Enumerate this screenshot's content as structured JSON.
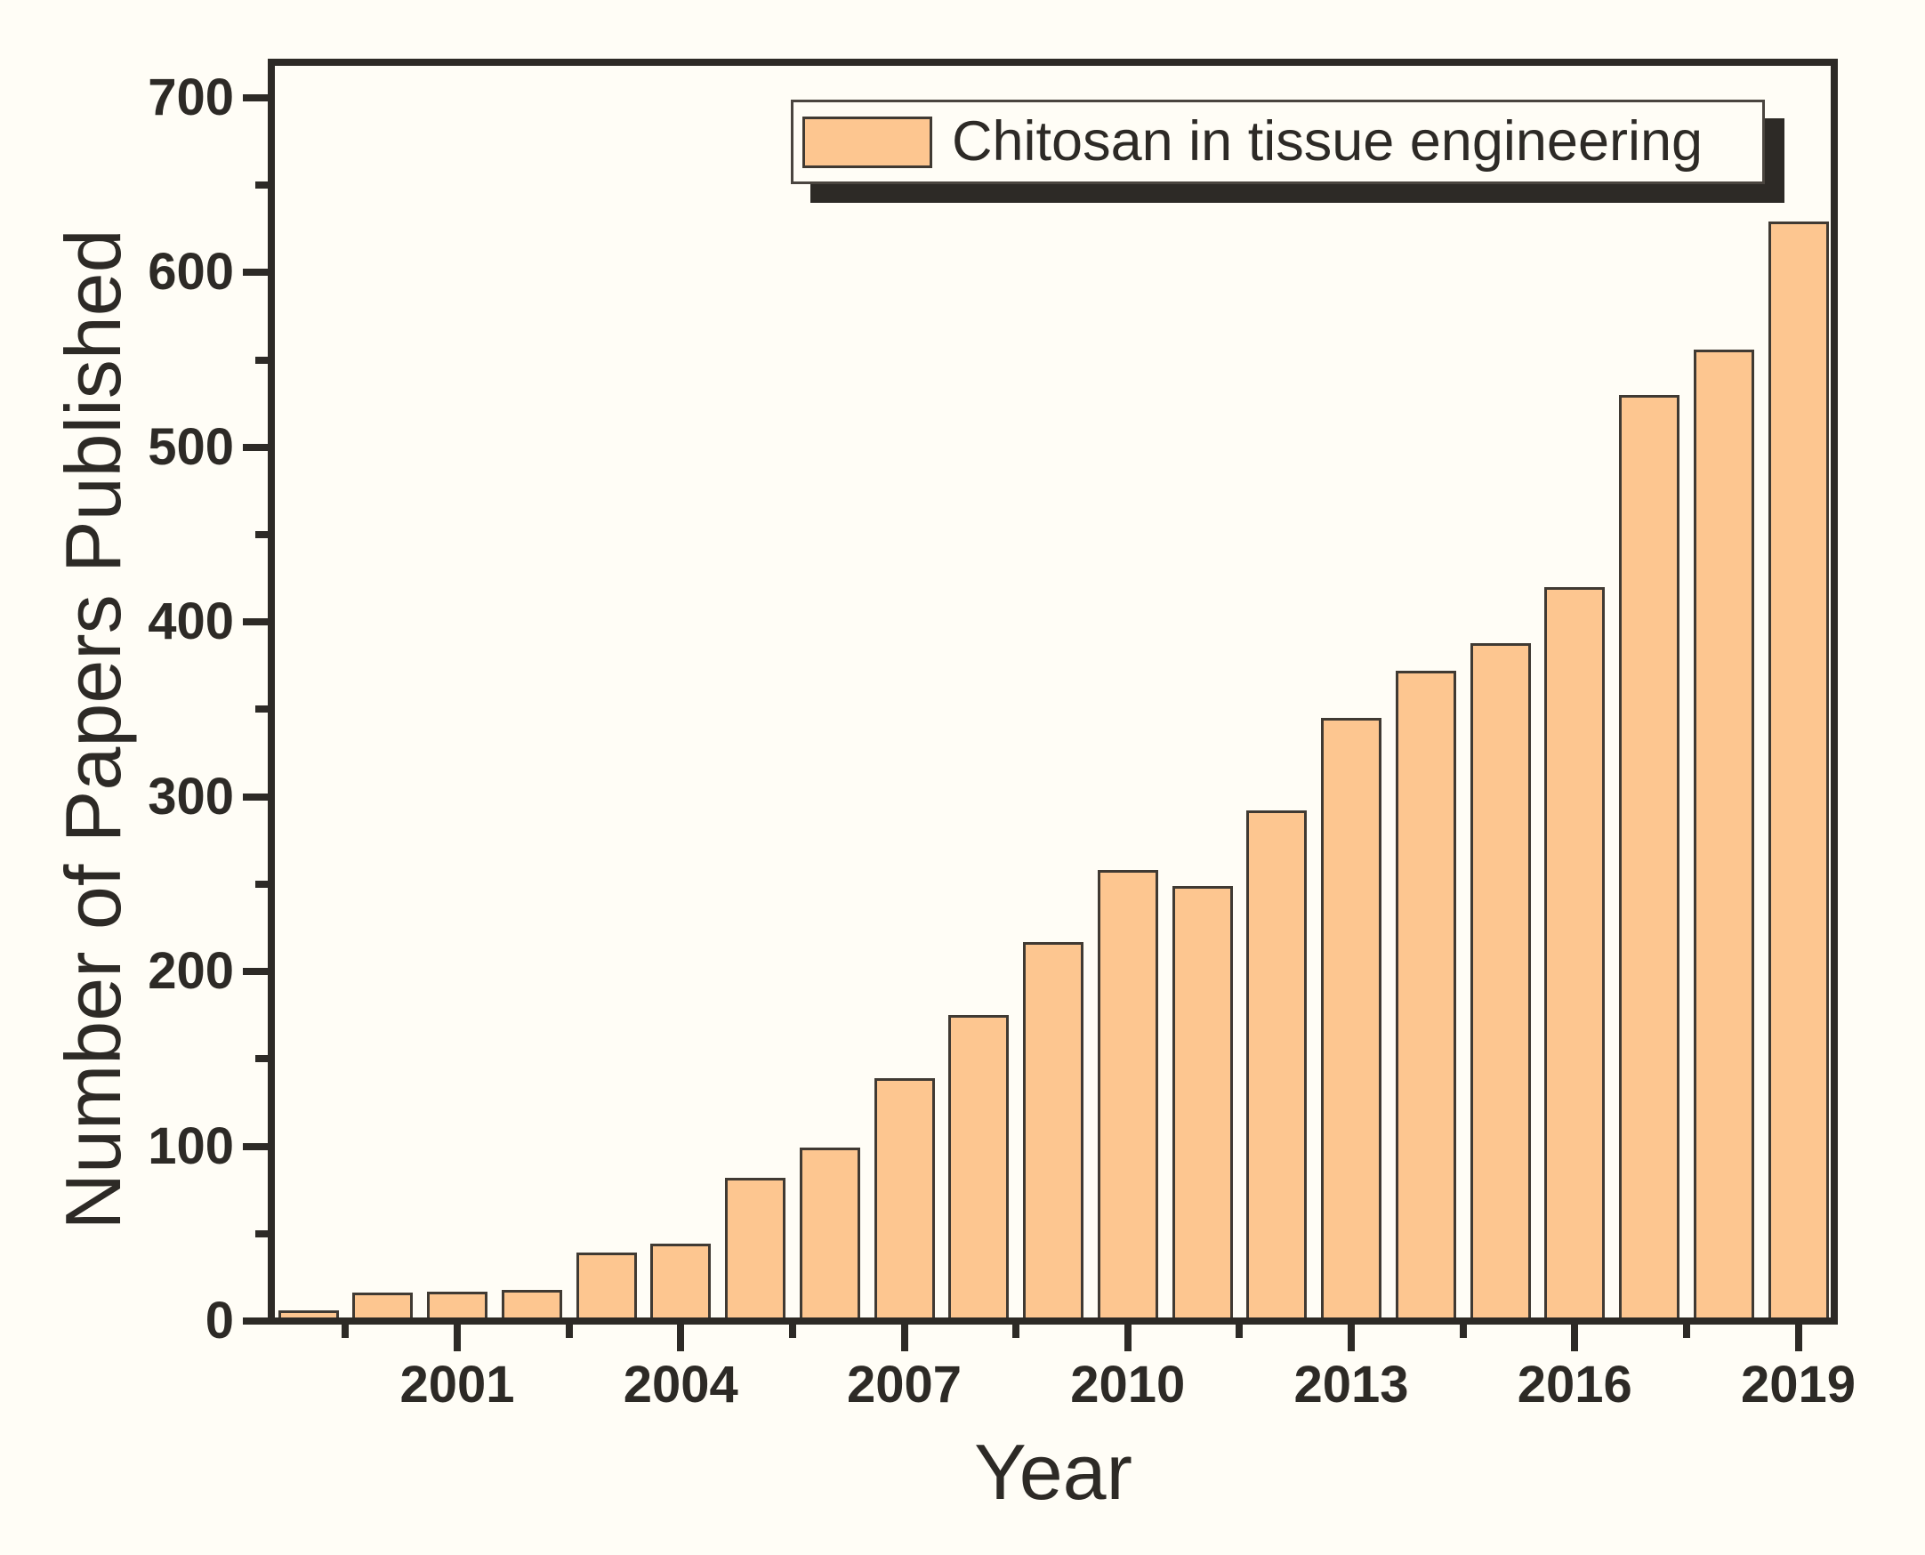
{
  "figure": {
    "background": "#fffdf6",
    "frame_color": "#2d2a26"
  },
  "chart_data": {
    "type": "bar",
    "title": "",
    "xlabel": "Year",
    "ylabel": "Number of Papers Published",
    "legend": {
      "label": "Chitosan in tissue engineering",
      "position": "top-right",
      "has_drop_shadow": true
    },
    "categories": [
      1999,
      2000,
      2001,
      2002,
      2003,
      2004,
      2005,
      2006,
      2007,
      2008,
      2009,
      2010,
      2011,
      2012,
      2013,
      2014,
      2015,
      2016,
      2017,
      2018,
      2019
    ],
    "values": [
      4,
      14,
      15,
      16,
      37,
      42,
      80,
      97,
      137,
      173,
      215,
      256,
      247,
      290,
      343,
      370,
      386,
      418,
      528,
      554,
      627
    ],
    "x_axis": {
      "range": [
        1998.5,
        2019.5
      ],
      "major_tick_labels": [
        "2001",
        "2004",
        "2007",
        "2010",
        "2013",
        "2016",
        "2019"
      ],
      "major_ticks": [
        2001,
        2004,
        2007,
        2010,
        2013,
        2016,
        2019
      ],
      "minor_ticks": [
        1999.5,
        2002.5,
        2005.5,
        2008.5,
        2011.5,
        2014.5,
        2017.5
      ]
    },
    "y_axis": {
      "min": 0,
      "max": 720,
      "major_step": 100,
      "minor_step": 50,
      "major_tick_labels": [
        "0",
        "100",
        "200",
        "300",
        "400",
        "500",
        "600",
        "700"
      ]
    },
    "grid": false,
    "colors": {
      "bar_fill": "#fdc690",
      "bar_outline": "#403a33",
      "axis": "#2d2a26"
    }
  }
}
